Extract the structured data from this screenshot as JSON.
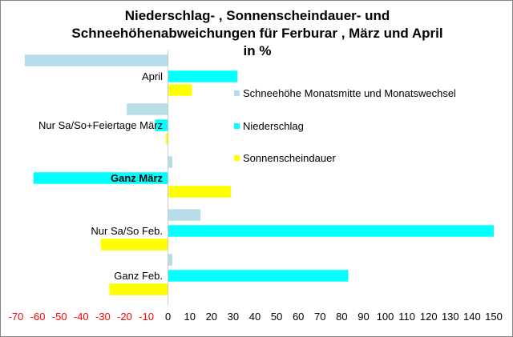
{
  "chart_data": {
    "type": "bar",
    "orientation": "horizontal",
    "title_lines": [
      "Niederschlag- , Sonnenscheindauer- und",
      "Schneehöhenabweichungen für Ferburar , März und April",
      "in %"
    ],
    "categories": [
      "April",
      "Nur Sa/So+Feiertage März",
      "Ganz März",
      "Nur Sa/So Feb.",
      "Ganz Feb."
    ],
    "category_bold": [
      false,
      false,
      true,
      false,
      false
    ],
    "series": [
      {
        "name": "Schneehöhe Monatsmitte und Monatswechsel",
        "color": "#b7dde8",
        "values": [
          -66,
          -19,
          2,
          15,
          2
        ]
      },
      {
        "name": "Niederschlag",
        "color": "#00ffff",
        "values": [
          32,
          -6,
          -62,
          150,
          83
        ]
      },
      {
        "name": "Sonnenscheindauer",
        "color": "#ffff00",
        "values": [
          11,
          -1,
          29,
          -31,
          -27
        ]
      }
    ],
    "xlim": [
      -70,
      150
    ],
    "xticks": [
      -70,
      -60,
      -50,
      -40,
      -30,
      -20,
      -10,
      0,
      10,
      20,
      30,
      40,
      50,
      60,
      70,
      80,
      90,
      100,
      110,
      120,
      130,
      140,
      150
    ],
    "negative_tick_color": "#ff0000",
    "positive_tick_color": "#000000",
    "legend_position": "right",
    "grid": false
  }
}
